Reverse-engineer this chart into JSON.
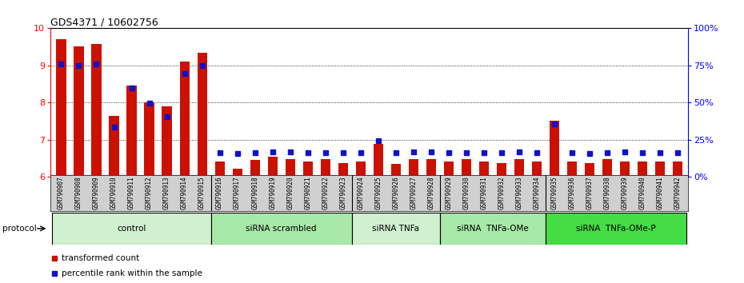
{
  "title": "GDS4371 / 10602756",
  "samples": [
    "GSM790907",
    "GSM790908",
    "GSM790909",
    "GSM790910",
    "GSM790911",
    "GSM790912",
    "GSM790913",
    "GSM790914",
    "GSM790915",
    "GSM790916",
    "GSM790917",
    "GSM790918",
    "GSM790919",
    "GSM790920",
    "GSM790921",
    "GSM790922",
    "GSM790923",
    "GSM790924",
    "GSM790925",
    "GSM790926",
    "GSM790927",
    "GSM790928",
    "GSM790929",
    "GSM790930",
    "GSM790931",
    "GSM790932",
    "GSM790933",
    "GSM790934",
    "GSM790935",
    "GSM790936",
    "GSM790937",
    "GSM790938",
    "GSM790939",
    "GSM790940",
    "GSM790941",
    "GSM790942"
  ],
  "transformed_count": [
    9.7,
    9.52,
    9.58,
    7.65,
    8.45,
    8.0,
    7.9,
    9.1,
    9.35,
    6.42,
    6.22,
    6.45,
    6.55,
    6.48,
    6.42,
    6.48,
    6.38,
    6.42,
    6.88,
    6.35,
    6.48,
    6.48,
    6.42,
    6.48,
    6.42,
    6.38,
    6.48,
    6.42,
    7.52,
    6.42,
    6.38,
    6.48,
    6.42,
    6.42,
    6.42,
    6.42
  ],
  "percentile_rank": [
    9.05,
    9.0,
    9.05,
    7.34,
    8.4,
    7.98,
    7.62,
    8.78,
    9.0,
    6.65,
    6.62,
    6.65,
    6.68,
    6.67,
    6.65,
    6.65,
    6.65,
    6.65,
    6.98,
    6.65,
    6.68,
    6.67,
    6.65,
    6.65,
    6.65,
    6.65,
    6.68,
    6.65,
    7.42,
    6.65,
    6.62,
    6.65,
    6.68,
    6.65,
    6.65,
    6.65
  ],
  "groups": [
    {
      "label": "control",
      "start": 0,
      "end": 9,
      "color": "#d0f0d0"
    },
    {
      "label": "siRNA scrambled",
      "start": 9,
      "end": 17,
      "color": "#a8e8a8"
    },
    {
      "label": "siRNA TNFa",
      "start": 17,
      "end": 22,
      "color": "#d0f0d0"
    },
    {
      "label": "siRNA  TNFa-OMe",
      "start": 22,
      "end": 28,
      "color": "#a8e8a8"
    },
    {
      "label": "siRNA  TNFa-OMe-P",
      "start": 28,
      "end": 36,
      "color": "#44dd44"
    }
  ],
  "ylim_left": [
    6.0,
    10.0
  ],
  "ylim_right": [
    0,
    100
  ],
  "yticks_left": [
    6,
    7,
    8,
    9,
    10
  ],
  "yticks_right": [
    0,
    25,
    50,
    75,
    100
  ],
  "bar_color_red": "#cc1100",
  "bar_color_blue": "#1111cc",
  "protocol_label": "protocol",
  "legend_tc": "transformed count",
  "legend_pr": "percentile rank within the sample"
}
